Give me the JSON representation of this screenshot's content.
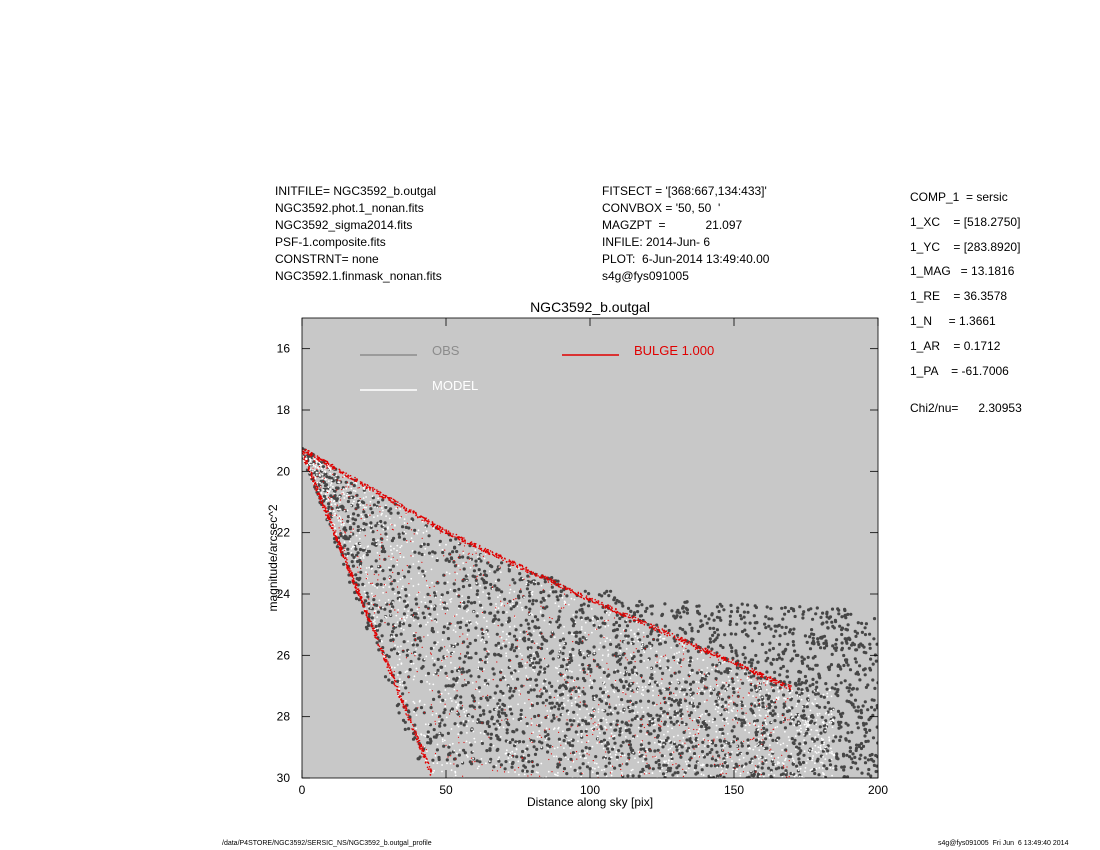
{
  "header_left": [
    "INITFILE= NGC3592_b.outgal",
    "NGC3592.phot.1_nonan.fits",
    "NGC3592_sigma2014.fits",
    "PSF-1.composite.fits",
    "CONSTRNT= none",
    "NGC3592.1.finmask_nonan.fits"
  ],
  "header_mid": [
    "FITSECT = '[368:667,134:433]'",
    "CONVBOX = '50, 50  '",
    "MAGZPT  =            21.097",
    "INFILE: 2014-Jun- 6",
    "PLOT:  6-Jun-2014 13:49:40.00",
    "s4g@fys091005"
  ],
  "params": [
    "COMP_1  = sersic",
    "1_XC    = [518.2750]",
    "1_YC    = [283.8920]",
    "1_MAG   = 13.1816",
    "1_RE    = 36.3578",
    "1_N     = 1.3661",
    "1_AR    = 0.1712",
    "1_PA    = -61.7006"
  ],
  "chi": "Chi2/nu=      2.30953",
  "footer": {
    "left": "/data/P4STORE/NGC3592/SERSIC_NS/NGC3592_b.outgal_profile",
    "right": "s4g@fys091005  Fri Jun  6 13:49:40 2014"
  },
  "colors": {
    "plot_bg": "#c8c8c8",
    "obs": "#464646",
    "model": "#ffffff",
    "bulge": "#e00000",
    "obs_legend": "#8c8c8c"
  },
  "chart_data": {
    "type": "scatter",
    "title": "NGC3592_b.outgal",
    "xlabel": "Distance along sky [pix]",
    "ylabel": "magnitude/arcsec^2",
    "xlim": [
      0,
      200
    ],
    "ylim": [
      30,
      15
    ],
    "y_inverted": true,
    "xticks": [
      0,
      50,
      100,
      150,
      200
    ],
    "yticks": [
      16,
      18,
      20,
      22,
      24,
      26,
      28,
      30
    ],
    "grid": false,
    "legend": [
      {
        "label": "OBS",
        "color": "#8c8c8c",
        "placement": "top-left"
      },
      {
        "label": "MODEL",
        "color": "#ffffff",
        "placement": "top-left"
      },
      {
        "label": "BULGE  1.000",
        "color": "#e00000",
        "placement": "top-center"
      }
    ],
    "series": [
      {
        "name": "OBS",
        "description_points": {
          "upper_envelope": [
            [
              0,
              19.2
            ],
            [
              20,
              20.4
            ],
            [
              50,
              22.0
            ],
            [
              80,
              23.3
            ],
            [
              120,
              24.2
            ],
            [
              200,
              24.5
            ]
          ],
          "lower_envelope": [
            [
              0,
              19.5
            ],
            [
              40,
              29.5
            ],
            [
              100,
              30.0
            ],
            [
              200,
              30.0
            ]
          ]
        }
      },
      {
        "name": "MODEL",
        "description_points": {
          "upper_envelope": [
            [
              0,
              19.2
            ],
            [
              50,
              21.9
            ],
            [
              100,
              24.1
            ],
            [
              170,
              27.0
            ]
          ],
          "lower_envelope": [
            [
              0,
              19.5
            ],
            [
              45,
              30.0
            ]
          ]
        }
      },
      {
        "name": "BULGE  1.000",
        "description_points": {
          "upper_envelope": [
            [
              0,
              19.2
            ],
            [
              50,
              21.9
            ],
            [
              100,
              24.1
            ],
            [
              170,
              27.0
            ]
          ],
          "lower_envelope": [
            [
              0,
              19.5
            ],
            [
              45,
              30.0
            ]
          ]
        }
      }
    ]
  }
}
